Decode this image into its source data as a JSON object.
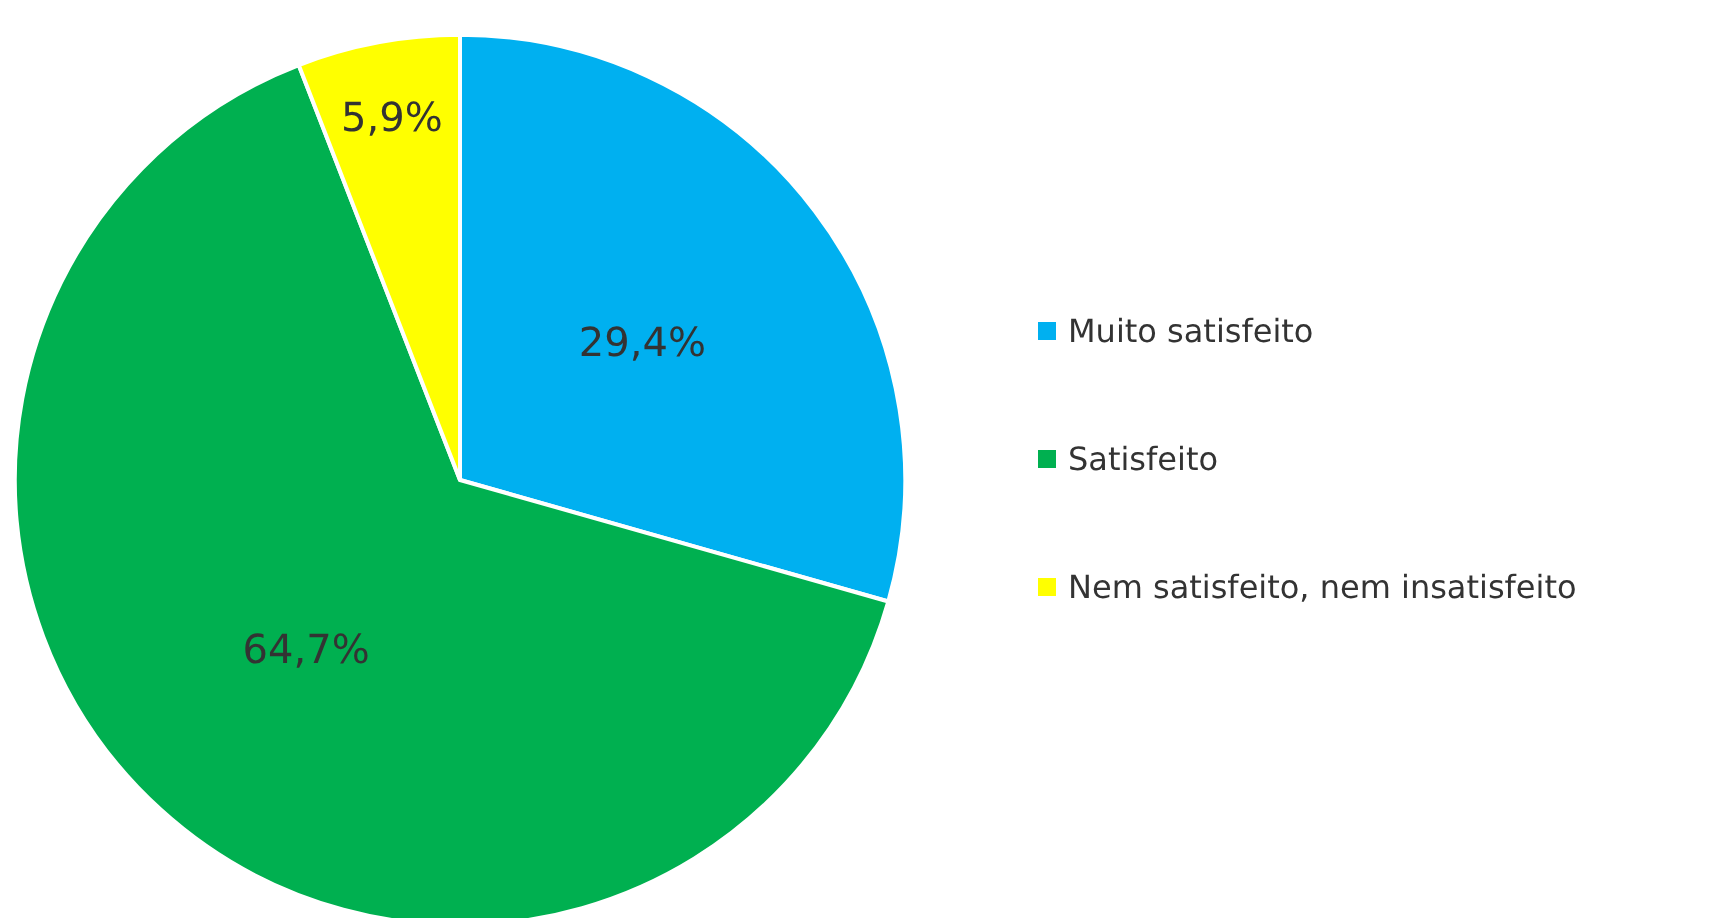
{
  "chart_data": {
    "type": "pie",
    "categories": [
      "Muito satisfeito",
      "Satisfeito",
      "Nem satisfeito, nem insatisfeito"
    ],
    "values": [
      29.4,
      64.7,
      5.9
    ],
    "colors": [
      "#00b0f0",
      "#00b050",
      "#ffff00"
    ],
    "value_labels": [
      "29,4%",
      "64,7%",
      "5,9%"
    ],
    "legend": "right"
  }
}
